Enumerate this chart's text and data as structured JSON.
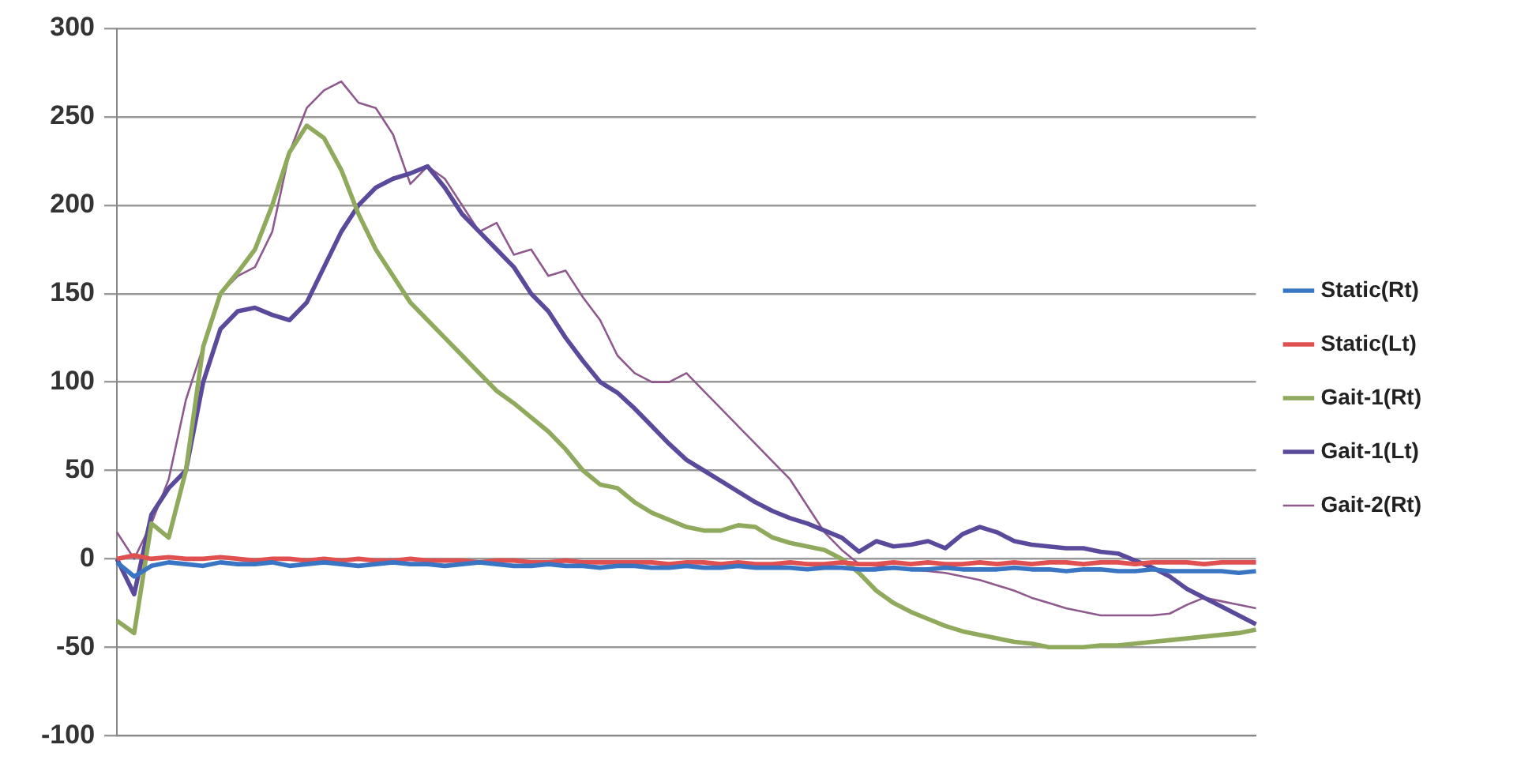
{
  "chart_data": {
    "type": "line",
    "categories": [
      null,
      null,
      null,
      null,
      null,
      null,
      null,
      null,
      null,
      null,
      null,
      null,
      null,
      null,
      null,
      null,
      null,
      null,
      null,
      null,
      null,
      null,
      null,
      null,
      null,
      null,
      null,
      null,
      null,
      null,
      null,
      null,
      null,
      null,
      null,
      null,
      null,
      null,
      null,
      null,
      null,
      null,
      null,
      null,
      null,
      null,
      null,
      null,
      null,
      null,
      null,
      null,
      null,
      null,
      null,
      null,
      null,
      null,
      null,
      null,
      null,
      null,
      null,
      null,
      null,
      null,
      null
    ],
    "ylim": [
      -100,
      300
    ],
    "yticks": [
      -100,
      -50,
      0,
      50,
      100,
      150,
      200,
      250,
      300
    ],
    "grid": "y",
    "legend": "right",
    "marker": "none",
    "line_style": "solid",
    "series": [
      {
        "name": "Static(Rt)",
        "color": "#3a75c4",
        "values": [
          -2,
          -10,
          -4,
          -2,
          -3,
          -4,
          -2,
          -3,
          -3,
          -2,
          -4,
          -3,
          -2,
          -3,
          -4,
          -3,
          -2,
          -3,
          -3,
          -4,
          -3,
          -2,
          -3,
          -4,
          -4,
          -3,
          -4,
          -4,
          -5,
          -4,
          -4,
          -5,
          -5,
          -4,
          -5,
          -5,
          -4,
          -5,
          -5,
          -5,
          -6,
          -5,
          -5,
          -6,
          -6,
          -5,
          -6,
          -6,
          -5,
          -6,
          -6,
          -6,
          -5,
          -6,
          -6,
          -7,
          -6,
          -6,
          -7,
          -7,
          -6,
          -7,
          -7,
          -7,
          -7,
          -8,
          -7
        ]
      },
      {
        "name": "Static(Lt)",
        "color": "#e05050",
        "values": [
          0,
          2,
          0,
          1,
          0,
          0,
          1,
          0,
          -1,
          0,
          0,
          -1,
          0,
          -1,
          0,
          -1,
          -1,
          0,
          -1,
          -1,
          -1,
          -2,
          -1,
          -1,
          -2,
          -2,
          -1,
          -2,
          -2,
          -2,
          -2,
          -2,
          -3,
          -2,
          -2,
          -3,
          -2,
          -3,
          -3,
          -2,
          -3,
          -3,
          -2,
          -3,
          -3,
          -2,
          -3,
          -2,
          -3,
          -3,
          -2,
          -3,
          -2,
          -3,
          -2,
          -2,
          -3,
          -2,
          -2,
          -3,
          -2,
          -2,
          -2,
          -3,
          -2,
          -2,
          -2
        ]
      },
      {
        "name": "Gait-1(Rt)",
        "color": "#8faa5c",
        "values": [
          -35,
          -42,
          20,
          12,
          50,
          120,
          150,
          162,
          175,
          200,
          230,
          245,
          238,
          220,
          195,
          175,
          160,
          145,
          135,
          125,
          115,
          105,
          95,
          88,
          80,
          72,
          62,
          50,
          42,
          40,
          32,
          26,
          22,
          18,
          16,
          16,
          19,
          18,
          12,
          9,
          7,
          5,
          0,
          -8,
          -18,
          -25,
          -30,
          -34,
          -38,
          -41,
          -43,
          -45,
          -47,
          -48,
          -50,
          -50,
          -50,
          -49,
          -49,
          -48,
          -47,
          -46,
          -45,
          -44,
          -43,
          -42,
          -40
        ]
      },
      {
        "name": "Gait-1(Lt)",
        "color": "#5b4a9b",
        "values": [
          0,
          -20,
          25,
          40,
          50,
          100,
          130,
          140,
          142,
          138,
          135,
          145,
          165,
          185,
          200,
          210,
          215,
          218,
          222,
          210,
          195,
          185,
          175,
          165,
          150,
          140,
          125,
          112,
          100,
          94,
          85,
          75,
          65,
          56,
          50,
          44,
          38,
          32,
          27,
          23,
          20,
          16,
          12,
          4,
          10,
          7,
          8,
          10,
          6,
          14,
          18,
          15,
          10,
          8,
          7,
          6,
          6,
          4,
          3,
          -1,
          -5,
          -10,
          -17,
          -22,
          -27,
          -32,
          -37
        ]
      },
      {
        "name": "Gait-2(Rt)",
        "color": "#8e5a8e",
        "values": [
          15,
          0,
          20,
          45,
          90,
          120,
          150,
          160,
          165,
          185,
          230,
          255,
          265,
          270,
          258,
          255,
          240,
          212,
          222,
          215,
          200,
          185,
          190,
          172,
          175,
          160,
          163,
          148,
          135,
          115,
          105,
          100,
          100,
          105,
          95,
          85,
          75,
          65,
          55,
          45,
          30,
          15,
          5,
          -3,
          -4,
          -5,
          -6,
          -7,
          -8,
          -10,
          -12,
          -15,
          -18,
          -22,
          -25,
          -28,
          -30,
          -32,
          -32,
          -32,
          -32,
          -31,
          -26,
          -22,
          -24,
          -26,
          -28
        ]
      }
    ]
  }
}
